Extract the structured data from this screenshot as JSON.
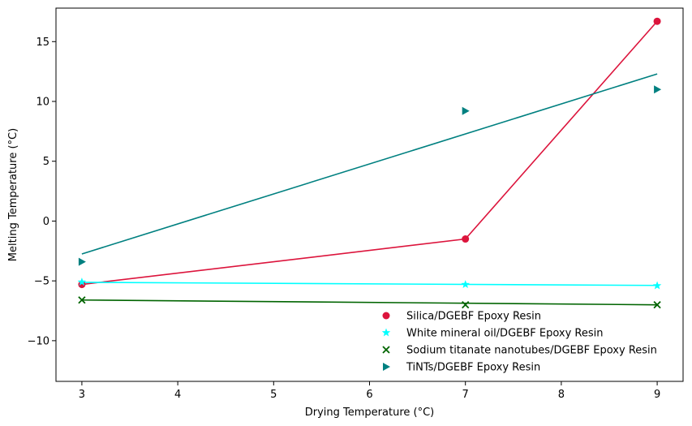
{
  "chart_data": {
    "type": "scatter",
    "title": "",
    "xlabel": "Drying Temperature (°C)",
    "ylabel": "Melting Temperature (°C)",
    "xlim": [
      2.73,
      9.27
    ],
    "ylim": [
      -13.4,
      17.8
    ],
    "xticks": [
      3,
      4,
      5,
      6,
      7,
      8,
      9
    ],
    "yticks": [
      -10,
      -5,
      0,
      5,
      10,
      15
    ],
    "grid": false,
    "legend_position": "lower-right",
    "series": [
      {
        "name": "Silica/DGEBF Epoxy Resin",
        "marker": "circle",
        "color": "#dc143c",
        "x": [
          3,
          7,
          9
        ],
        "y": [
          -5.3,
          -1.5,
          16.7
        ],
        "line": {
          "type": "connect",
          "x": [
            3,
            7,
            9
          ],
          "y": [
            -5.3,
            -1.5,
            16.7
          ]
        }
      },
      {
        "name": "White mineral oil/DGEBF Epoxy Resin",
        "marker": "star",
        "color": "#00ffff",
        "x": [
          3,
          7,
          9
        ],
        "y": [
          -5.1,
          -5.3,
          -5.4
        ],
        "line": {
          "type": "fit",
          "x": [
            3,
            9
          ],
          "y": [
            -5.12,
            -5.38
          ]
        }
      },
      {
        "name": "Sodium titanate nanotubes/DGEBF Epoxy Resin",
        "marker": "x",
        "color": "#006400",
        "x": [
          3,
          7,
          9
        ],
        "y": [
          -6.6,
          -7.0,
          -7.0
        ],
        "line": {
          "type": "fit",
          "x": [
            3,
            9
          ],
          "y": [
            -6.6,
            -7.0
          ]
        }
      },
      {
        "name": "TiNTs/DGEBF Epoxy Resin",
        "marker": "triangle-right",
        "color": "#008080",
        "x": [
          3,
          7,
          9
        ],
        "y": [
          -3.4,
          9.2,
          11.0
        ],
        "line": {
          "type": "fit",
          "x": [
            3,
            9
          ],
          "y": [
            -2.75,
            12.3
          ]
        }
      }
    ]
  }
}
